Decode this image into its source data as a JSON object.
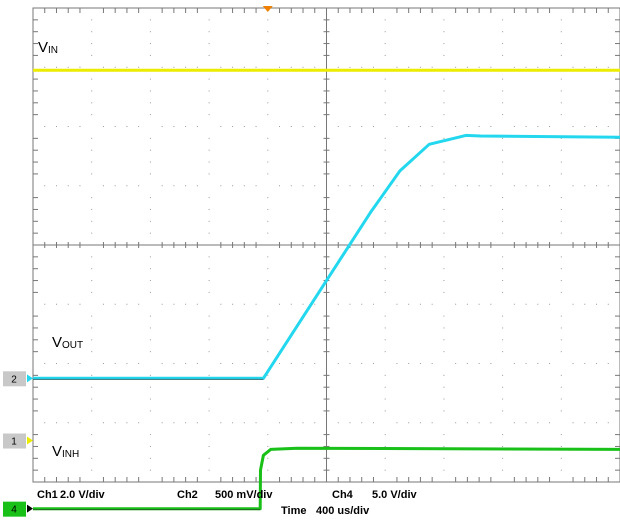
{
  "chart_data": {
    "type": "line",
    "grid": true,
    "x_unit": "us",
    "x_range": [
      0,
      4000
    ],
    "trigger_time": 1600,
    "series": [
      {
        "name": "VIN",
        "label_main": "V",
        "label_sub": "IN",
        "channel": "Ch1",
        "color": "#ecec00",
        "scale_per_div": 2.0,
        "unit": "V",
        "marker": null,
        "x": [
          0,
          4000
        ],
        "y_div": [
          2.95,
          2.95
        ]
      },
      {
        "name": "VOUT",
        "label_main": "V",
        "label_sub": "OUT",
        "channel": "Ch2",
        "color": "#23d8ee",
        "scale_per_div": 0.5,
        "unit": "V",
        "marker": "2",
        "marker_div": -2.25,
        "x": [
          0,
          1570,
          1700,
          2000,
          2300,
          2500,
          2700,
          2950,
          3050,
          4000
        ],
        "y_div": [
          -2.25,
          -2.25,
          -1.75,
          -0.6,
          0.55,
          1.25,
          1.7,
          1.85,
          1.84,
          1.82
        ]
      },
      {
        "name": "VINH",
        "label_main": "V",
        "label_sub": "INH",
        "channel": "Ch4",
        "color": "#18c018",
        "scale_per_div": 5.0,
        "unit": "V",
        "marker": "4",
        "marker_div": -4.45,
        "x": [
          0,
          1548,
          1550,
          1570,
          1620,
          1800,
          4000
        ],
        "y_div": [
          -4.45,
          -4.45,
          -3.8,
          -3.55,
          -3.45,
          -3.43,
          -3.45
        ]
      }
    ],
    "extra_markers": [
      {
        "label": "1",
        "color": "#ecec00",
        "div": -3.3
      }
    ]
  },
  "settings": {
    "ch1": {
      "name": "Ch1",
      "scale": "2.0 V/div"
    },
    "ch2": {
      "name": "Ch2",
      "scale": "500 mV/div"
    },
    "ch4": {
      "name": "Ch4",
      "scale": "5.0 V/div"
    },
    "time": {
      "name": "Time",
      "scale": "400 us/div"
    }
  },
  "colors": {
    "trigger_marker": "#f08000",
    "marker_box": "#c8c8c8",
    "ch4_marker_box": "#18c018"
  }
}
